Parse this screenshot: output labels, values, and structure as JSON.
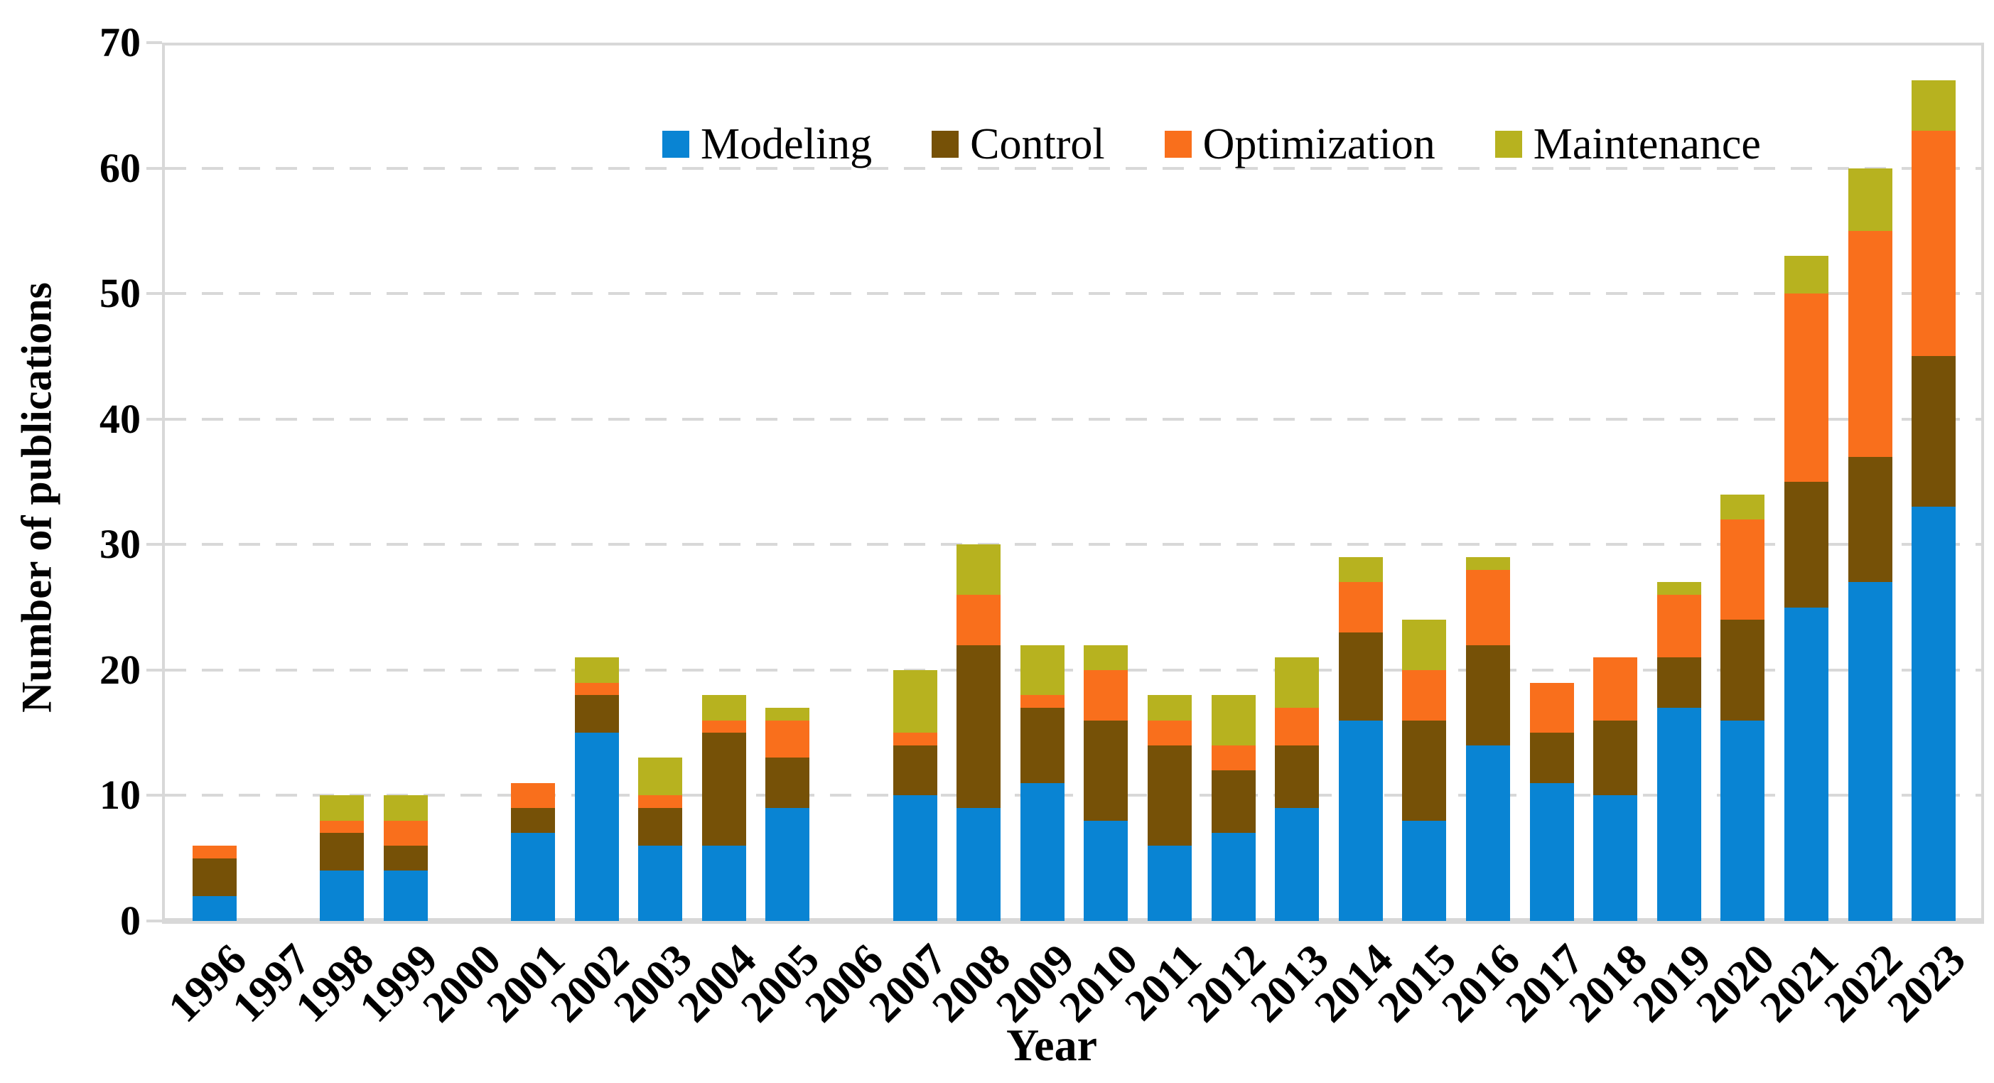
{
  "chart_data": {
    "type": "bar",
    "stacked": true,
    "xlabel": "Year",
    "ylabel": "Number of publications",
    "ylim": [
      0,
      70
    ],
    "y_ticks": [
      0,
      10,
      20,
      30,
      40,
      50,
      60,
      70
    ],
    "grid": "dashed-horizontal",
    "legend_position": "top-center-inside",
    "categories": [
      "1996",
      "1997",
      "1998",
      "1999",
      "2000",
      "2001",
      "2002",
      "2003",
      "2004",
      "2005",
      "2006",
      "2007",
      "2008",
      "2009",
      "2010",
      "2011",
      "2012",
      "2013",
      "2014",
      "2015",
      "2016",
      "2017",
      "2018",
      "2019",
      "2020",
      "2021",
      "2022",
      "2023"
    ],
    "series": [
      {
        "name": "Modeling",
        "color": "#0984D3",
        "values": [
          2,
          0,
          4,
          4,
          0,
          7,
          15,
          6,
          6,
          9,
          0,
          10,
          9,
          11,
          8,
          6,
          7,
          9,
          16,
          8,
          14,
          11,
          10,
          17,
          16,
          25,
          27,
          33
        ]
      },
      {
        "name": "Control",
        "color": "#765107",
        "values": [
          3,
          0,
          3,
          2,
          0,
          2,
          3,
          3,
          9,
          4,
          0,
          4,
          13,
          6,
          8,
          8,
          5,
          5,
          7,
          8,
          8,
          4,
          6,
          4,
          8,
          10,
          10,
          12
        ]
      },
      {
        "name": "Optimization",
        "color": "#F96F1C",
        "values": [
          1,
          0,
          1,
          2,
          0,
          2,
          1,
          1,
          1,
          3,
          0,
          1,
          4,
          1,
          4,
          2,
          2,
          3,
          4,
          4,
          6,
          4,
          5,
          5,
          8,
          15,
          18,
          18
        ]
      },
      {
        "name": "Maintenance",
        "color": "#B7B21F",
        "values": [
          0,
          0,
          2,
          2,
          0,
          0,
          2,
          3,
          2,
          1,
          0,
          5,
          4,
          4,
          2,
          2,
          4,
          4,
          2,
          4,
          1,
          0,
          0,
          1,
          2,
          3,
          5,
          4
        ]
      }
    ]
  },
  "colors": {
    "grid": "#D8D8D8",
    "text": "#000000",
    "background": "#ffffff"
  }
}
